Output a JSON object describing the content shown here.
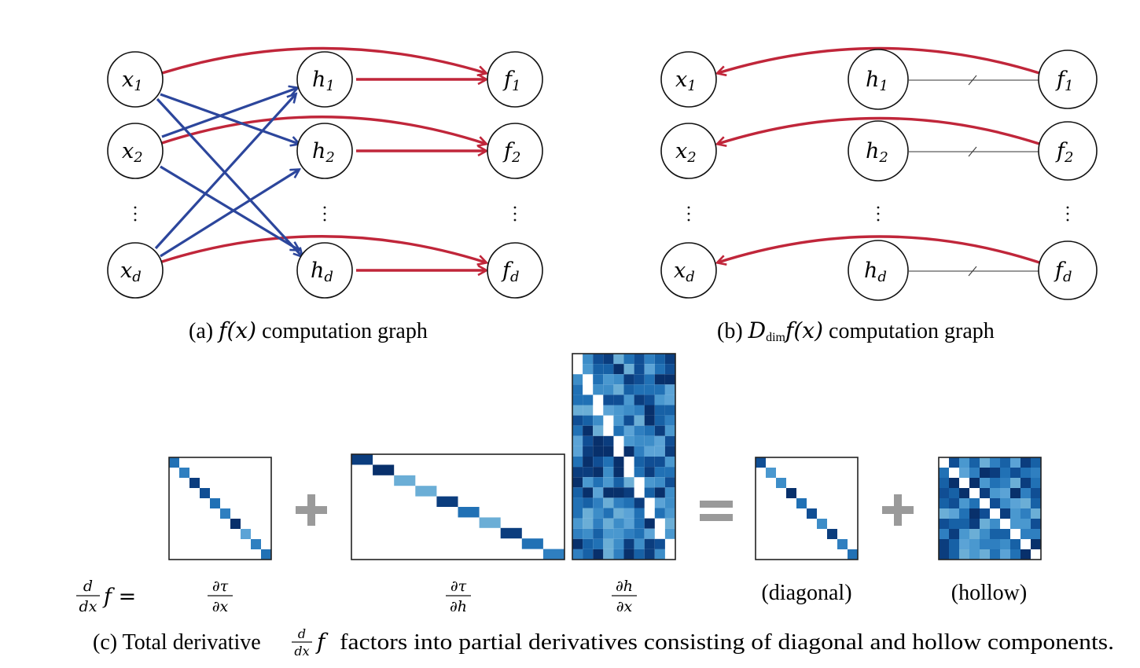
{
  "panel_a": {
    "caption_prefix": "(a)",
    "caption_math": "f(x)",
    "caption_suffix": "computation graph",
    "x_nodes": [
      {
        "base": "x",
        "sub": "1"
      },
      {
        "base": "x",
        "sub": "2"
      },
      {
        "base": "x",
        "sub": "d"
      }
    ],
    "h_nodes": [
      {
        "base": "h",
        "sub": "1"
      },
      {
        "base": "h",
        "sub": "2"
      },
      {
        "base": "h",
        "sub": "d"
      }
    ],
    "f_nodes": [
      {
        "base": "f",
        "sub": "1"
      },
      {
        "base": "f",
        "sub": "2"
      },
      {
        "base": "f",
        "sub": "d"
      }
    ]
  },
  "panel_b": {
    "caption_prefix": "(b)",
    "caption_math_main": "D",
    "caption_math_sub": "dim",
    "caption_math_rest": "f(x)",
    "caption_suffix": "computation graph"
  },
  "panel_c": {
    "lhs_num": "d",
    "lhs_den": "dx",
    "lhs_rest": "f =",
    "labels": {
      "dtau_dx": {
        "num": "∂τ",
        "den": "∂x"
      },
      "dtau_dh": {
        "num": "∂τ",
        "den": "∂h"
      },
      "dh_dx": {
        "num": "∂h",
        "den": "∂x"
      },
      "diagonal": "(diagonal)",
      "hollow": "(hollow)"
    },
    "operators": [
      "+",
      "=",
      "+"
    ],
    "caption_prefix": "(c) Total derivative",
    "caption_frac_num": "d",
    "caption_frac_den": "dx",
    "caption_math": "f",
    "caption_suffix": "factors into partial derivatives consisting of diagonal and hollow components."
  },
  "colors": {
    "red_edge": "#c0263a",
    "blue_edge": "#2c469c",
    "operator_gray": "#9a9a9a"
  }
}
